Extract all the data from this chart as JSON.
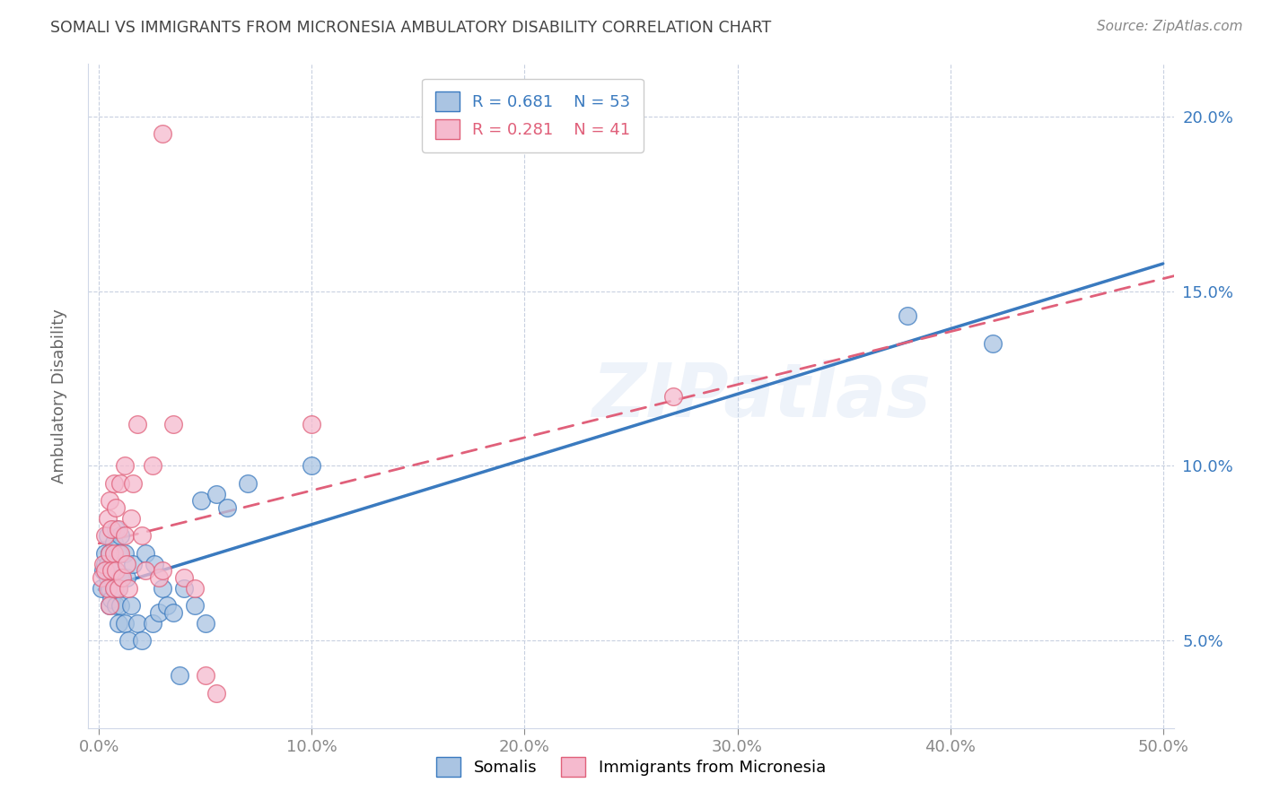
{
  "title": "SOMALI VS IMMIGRANTS FROM MICRONESIA AMBULATORY DISABILITY CORRELATION CHART",
  "source": "Source: ZipAtlas.com",
  "ylabel": "Ambulatory Disability",
  "xlabel": "",
  "watermark": "ZIPatlas",
  "xlim": [
    -0.005,
    0.505
  ],
  "ylim": [
    0.025,
    0.215
  ],
  "xticks": [
    0.0,
    0.1,
    0.2,
    0.3,
    0.4,
    0.5
  ],
  "yticks": [
    0.05,
    0.1,
    0.15,
    0.2
  ],
  "ytick_labels": [
    "5.0%",
    "10.0%",
    "15.0%",
    "20.0%"
  ],
  "xtick_labels": [
    "0.0%",
    "10.0%",
    "20.0%",
    "30.0%",
    "40.0%",
    "50.0%"
  ],
  "somali_R": 0.681,
  "somali_N": 53,
  "micro_R": 0.281,
  "micro_N": 41,
  "somali_color": "#aac4e2",
  "micro_color": "#f5bace",
  "somali_line_color": "#3a7abf",
  "micro_line_color": "#e0607a",
  "somali_scatter_x": [
    0.001,
    0.002,
    0.003,
    0.003,
    0.004,
    0.004,
    0.004,
    0.005,
    0.005,
    0.005,
    0.005,
    0.006,
    0.006,
    0.006,
    0.007,
    0.007,
    0.007,
    0.008,
    0.008,
    0.008,
    0.008,
    0.009,
    0.009,
    0.009,
    0.01,
    0.01,
    0.01,
    0.012,
    0.012,
    0.013,
    0.014,
    0.015,
    0.016,
    0.018,
    0.02,
    0.022,
    0.025,
    0.026,
    0.028,
    0.03,
    0.032,
    0.035,
    0.038,
    0.04,
    0.045,
    0.048,
    0.05,
    0.055,
    0.06,
    0.07,
    0.1,
    0.38,
    0.42
  ],
  "somali_scatter_y": [
    0.065,
    0.07,
    0.072,
    0.075,
    0.068,
    0.072,
    0.08,
    0.06,
    0.065,
    0.07,
    0.075,
    0.062,
    0.068,
    0.072,
    0.065,
    0.07,
    0.078,
    0.06,
    0.065,
    0.07,
    0.082,
    0.055,
    0.065,
    0.075,
    0.06,
    0.068,
    0.08,
    0.055,
    0.075,
    0.068,
    0.05,
    0.06,
    0.072,
    0.055,
    0.05,
    0.075,
    0.055,
    0.072,
    0.058,
    0.065,
    0.06,
    0.058,
    0.04,
    0.065,
    0.06,
    0.09,
    0.055,
    0.092,
    0.088,
    0.095,
    0.1,
    0.143,
    0.135
  ],
  "micro_scatter_x": [
    0.001,
    0.002,
    0.003,
    0.003,
    0.004,
    0.004,
    0.005,
    0.005,
    0.005,
    0.006,
    0.006,
    0.007,
    0.007,
    0.007,
    0.008,
    0.008,
    0.009,
    0.009,
    0.01,
    0.01,
    0.011,
    0.012,
    0.012,
    0.013,
    0.014,
    0.015,
    0.016,
    0.018,
    0.02,
    0.022,
    0.025,
    0.028,
    0.03,
    0.035,
    0.04,
    0.045,
    0.05,
    0.055,
    0.1,
    0.27,
    0.03
  ],
  "micro_scatter_y": [
    0.068,
    0.072,
    0.07,
    0.08,
    0.065,
    0.085,
    0.06,
    0.075,
    0.09,
    0.07,
    0.082,
    0.065,
    0.075,
    0.095,
    0.07,
    0.088,
    0.065,
    0.082,
    0.075,
    0.095,
    0.068,
    0.08,
    0.1,
    0.072,
    0.065,
    0.085,
    0.095,
    0.112,
    0.08,
    0.07,
    0.1,
    0.068,
    0.07,
    0.112,
    0.068,
    0.065,
    0.04,
    0.035,
    0.112,
    0.12,
    0.195
  ]
}
